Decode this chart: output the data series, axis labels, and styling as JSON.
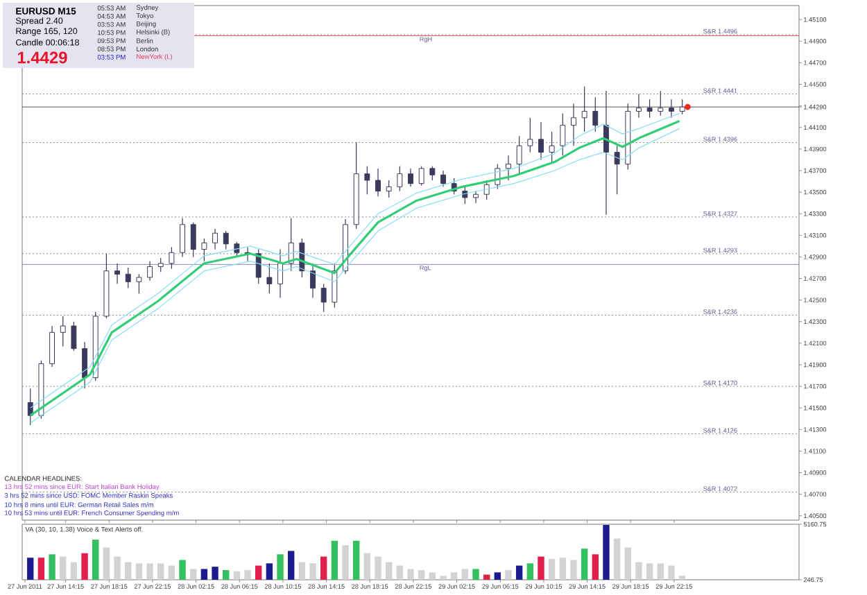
{
  "chart_data": [
    {
      "type": "candlestick",
      "title": "EURUSD M15",
      "color": "#3a3a5c",
      "x": [
        "2011-06-27T11:00",
        "2011-06-27T12:00",
        "2011-06-27T13:00",
        "2011-06-27T14:00",
        "2011-06-27T15:00",
        "2011-06-27T16:00",
        "2011-06-27T17:00",
        "2011-06-27T18:00",
        "2011-06-27T19:00",
        "2011-06-27T20:00",
        "2011-06-27T21:00",
        "2011-06-27T22:00",
        "2011-06-27T23:00",
        "2011-06-28T00:00",
        "2011-06-28T01:00",
        "2011-06-28T02:00",
        "2011-06-28T03:00",
        "2011-06-28T04:00",
        "2011-06-28T05:00",
        "2011-06-28T06:00",
        "2011-06-28T07:00",
        "2011-06-28T08:00",
        "2011-06-28T09:00",
        "2011-06-28T10:00",
        "2011-06-28T11:00",
        "2011-06-28T12:00",
        "2011-06-28T13:00",
        "2011-06-28T14:00",
        "2011-06-28T15:00",
        "2011-06-28T16:00",
        "2011-06-28T17:00",
        "2011-06-28T18:00",
        "2011-06-28T19:00",
        "2011-06-28T20:00",
        "2011-06-28T21:00",
        "2011-06-28T22:00",
        "2011-06-28T23:00",
        "2011-06-29T00:00",
        "2011-06-29T01:00",
        "2011-06-29T02:00",
        "2011-06-29T03:00",
        "2011-06-29T04:00",
        "2011-06-29T05:00",
        "2011-06-29T06:00",
        "2011-06-29T07:00",
        "2011-06-29T08:00",
        "2011-06-29T09:00",
        "2011-06-29T10:00",
        "2011-06-29T11:00",
        "2011-06-29T12:00",
        "2011-06-29T13:00",
        "2011-06-29T14:00",
        "2011-06-29T15:00",
        "2011-06-29T16:00",
        "2011-06-29T17:00",
        "2011-06-29T18:00",
        "2011-06-29T19:00",
        "2011-06-29T20:00",
        "2011-06-29T21:00",
        "2011-06-29T22:00",
        "2011-06-29T23:00"
      ],
      "ohlc": [
        [
          1.4155,
          1.4168,
          1.4134,
          1.4143
        ],
        [
          1.4143,
          1.4194,
          1.414,
          1.4191
        ],
        [
          1.4191,
          1.4226,
          1.4188,
          1.422
        ],
        [
          1.422,
          1.4235,
          1.4207,
          1.4226
        ],
        [
          1.4226,
          1.423,
          1.4203,
          1.4205
        ],
        [
          1.4205,
          1.4211,
          1.4168,
          1.4178
        ],
        [
          1.4178,
          1.4239,
          1.4175,
          1.4235
        ],
        [
          1.4235,
          1.4293,
          1.4233,
          1.4277
        ],
        [
          1.4277,
          1.4284,
          1.4265,
          1.4274
        ],
        [
          1.4274,
          1.428,
          1.4261,
          1.4267
        ],
        [
          1.4267,
          1.4274,
          1.4256,
          1.4271
        ],
        [
          1.4271,
          1.4286,
          1.4268,
          1.4281
        ],
        [
          1.4281,
          1.4289,
          1.4276,
          1.4284
        ],
        [
          1.4284,
          1.4299,
          1.4279,
          1.4294
        ],
        [
          1.4294,
          1.4326,
          1.429,
          1.432
        ],
        [
          1.432,
          1.4322,
          1.429,
          1.4297
        ],
        [
          1.4297,
          1.4307,
          1.4286,
          1.4303
        ],
        [
          1.4303,
          1.4316,
          1.4297,
          1.4312
        ],
        [
          1.4312,
          1.4314,
          1.4297,
          1.4302
        ],
        [
          1.4302,
          1.4304,
          1.429,
          1.4294
        ],
        [
          1.4294,
          1.4299,
          1.4286,
          1.4293
        ],
        [
          1.4293,
          1.4297,
          1.4265,
          1.4271
        ],
        [
          1.4271,
          1.4284,
          1.4256,
          1.4265
        ],
        [
          1.4265,
          1.4297,
          1.4252,
          1.4284
        ],
        [
          1.4284,
          1.4326,
          1.4277,
          1.4303
        ],
        [
          1.4303,
          1.4307,
          1.4271,
          1.4277
        ],
        [
          1.4277,
          1.4284,
          1.4252,
          1.4261
        ],
        [
          1.4261,
          1.4265,
          1.4239,
          1.4248
        ],
        [
          1.4248,
          1.4284,
          1.4243,
          1.4277
        ],
        [
          1.4277,
          1.4325,
          1.4274,
          1.432
        ],
        [
          1.432,
          1.4396,
          1.4316,
          1.4367
        ],
        [
          1.4367,
          1.4374,
          1.4348,
          1.4361
        ],
        [
          1.4361,
          1.4372,
          1.4346,
          1.4351
        ],
        [
          1.4351,
          1.4361,
          1.4345,
          1.4355
        ],
        [
          1.4355,
          1.4374,
          1.4351,
          1.4367
        ],
        [
          1.4367,
          1.4372,
          1.4355,
          1.4358
        ],
        [
          1.4358,
          1.4374,
          1.4356,
          1.4372
        ],
        [
          1.4372,
          1.4374,
          1.4361,
          1.4366
        ],
        [
          1.4366,
          1.437,
          1.4355,
          1.4358
        ],
        [
          1.4358,
          1.4363,
          1.4348,
          1.4351
        ],
        [
          1.4351,
          1.4356,
          1.4339,
          1.4345
        ],
        [
          1.4345,
          1.4351,
          1.434,
          1.4348
        ],
        [
          1.4348,
          1.4361,
          1.4343,
          1.4357
        ],
        [
          1.4357,
          1.4376,
          1.4353,
          1.4372
        ],
        [
          1.4372,
          1.4384,
          1.4361,
          1.4376
        ],
        [
          1.4376,
          1.4402,
          1.4367,
          1.4393
        ],
        [
          1.4393,
          1.4419,
          1.4387,
          1.4399
        ],
        [
          1.4399,
          1.4415,
          1.438,
          1.4387
        ],
        [
          1.4387,
          1.4406,
          1.4377,
          1.4393
        ],
        [
          1.4393,
          1.4423,
          1.4384,
          1.4412
        ],
        [
          1.4412,
          1.4432,
          1.4393,
          1.4419
        ],
        [
          1.4419,
          1.4448,
          1.4406,
          1.4425
        ],
        [
          1.4425,
          1.4438,
          1.4406,
          1.4412
        ],
        [
          1.4412,
          1.4444,
          1.4329,
          1.4387
        ],
        [
          1.4387,
          1.4393,
          1.4348,
          1.4376
        ],
        [
          1.4376,
          1.4432,
          1.4371,
          1.4425
        ],
        [
          1.4425,
          1.4441,
          1.4419,
          1.4428
        ],
        [
          1.4428,
          1.4436,
          1.4419,
          1.4425
        ],
        [
          1.4425,
          1.4444,
          1.4421,
          1.4428
        ],
        [
          1.4428,
          1.4436,
          1.4419,
          1.4425
        ],
        [
          1.4425,
          1.4436,
          1.4422,
          1.4429
        ]
      ],
      "series": [
        {
          "type": "line",
          "color": "#33cc77",
          "x": [
            "2011-06-27T11:00",
            "2011-06-27T16:30",
            "2011-06-27T18:30",
            "2011-06-27T22:45",
            "2011-06-28T03:00",
            "2011-06-28T07:15",
            "2011-06-28T10:15",
            "2011-06-28T11:30",
            "2011-06-28T15:00",
            "2011-06-28T16:30",
            "2011-06-28T19:00",
            "2011-06-28T22:30",
            "2011-06-29T02:45",
            "2011-06-29T07:30",
            "2011-06-29T11:15",
            "2011-06-29T13:30",
            "2011-06-29T15:45",
            "2011-06-29T17:30",
            "2011-06-29T19:00",
            "2011-06-29T22:45"
          ],
          "values": [
            1.4143,
            1.4181,
            1.422,
            1.4249,
            1.4284,
            1.4293,
            1.4284,
            1.4288,
            1.4275,
            1.4293,
            1.4322,
            1.4342,
            1.4355,
            1.4365,
            1.4378,
            1.4391,
            1.44,
            1.4392,
            1.44,
            1.4416
          ]
        },
        {
          "type": "line",
          "color": "#88ddf5",
          "x": [
            "2011-06-27T11:00",
            "2011-06-27T16:30",
            "2011-06-27T18:30",
            "2011-06-27T22:45",
            "2011-06-28T03:00",
            "2011-06-28T07:15",
            "2011-06-28T10:15",
            "2011-06-28T11:30",
            "2011-06-28T15:00",
            "2011-06-28T16:30",
            "2011-06-28T19:00",
            "2011-06-28T22:30",
            "2011-06-29T02:45",
            "2011-06-29T07:30",
            "2011-06-29T11:15",
            "2011-06-29T13:30",
            "2011-06-29T15:45",
            "2011-06-29T17:30",
            "2011-06-29T19:00",
            "2011-06-29T22:45"
          ],
          "values": [
            1.415,
            1.4188,
            1.4227,
            1.4256,
            1.4291,
            1.43,
            1.4291,
            1.4295,
            1.4283,
            1.4301,
            1.433,
            1.4349,
            1.4362,
            1.4372,
            1.4386,
            1.4402,
            1.4413,
            1.4404,
            1.4409,
            1.4423
          ]
        },
        {
          "type": "line",
          "color": "#88ddf5",
          "x": [
            "2011-06-27T11:00",
            "2011-06-27T16:30",
            "2011-06-27T18:30",
            "2011-06-27T22:45",
            "2011-06-28T03:00",
            "2011-06-28T07:15",
            "2011-06-28T10:15",
            "2011-06-28T11:30",
            "2011-06-28T15:00",
            "2011-06-28T16:30",
            "2011-06-28T19:00",
            "2011-06-28T22:30",
            "2011-06-29T02:45",
            "2011-06-29T07:30",
            "2011-06-29T11:15",
            "2011-06-29T13:30",
            "2011-06-29T15:45",
            "2011-06-29T17:30",
            "2011-06-29T19:00",
            "2011-06-29T22:45"
          ],
          "values": [
            1.4136,
            1.4174,
            1.4213,
            1.4242,
            1.4277,
            1.4286,
            1.4277,
            1.4281,
            1.4267,
            1.4285,
            1.4314,
            1.4335,
            1.4348,
            1.4358,
            1.437,
            1.438,
            1.4387,
            1.438,
            1.4391,
            1.4409
          ]
        },
        {
          "type": "scatter",
          "color": "#ee2a1a",
          "x": [
            "2011-06-29T23:30"
          ],
          "values": [
            1.4429
          ]
        }
      ],
      "xlim": [
        "2011-06-27T10:15",
        "2011-06-30T09:45"
      ],
      "xticks": [
        {
          "value": "2011-06-27T10:30",
          "label": null
        },
        {
          "value": "2011-06-27T14:15",
          "label": null
        },
        {
          "value": "2011-06-27T18:15",
          "label": null
        },
        {
          "value": "2011-06-27T22:15",
          "label": null
        },
        {
          "value": "2011-06-28T02:15",
          "label": null
        },
        {
          "value": "2011-06-28T06:15",
          "label": null
        },
        {
          "value": "2011-06-28T10:15",
          "label": null
        },
        {
          "value": "2011-06-28T14:15",
          "label": null
        },
        {
          "value": "2011-06-28T18:15",
          "label": null
        },
        {
          "value": "2011-06-28T22:15",
          "label": null
        },
        {
          "value": "2011-06-29T02:15",
          "label": null
        },
        {
          "value": "2011-06-29T06:15",
          "label": null
        },
        {
          "value": "2011-06-29T10:15",
          "label": null
        },
        {
          "value": "2011-06-29T14:15",
          "label": null
        },
        {
          "value": "2011-06-29T18:15",
          "label": null
        },
        {
          "value": "2011-06-29T22:15",
          "label": null
        }
      ],
      "ylim": [
        1.4046,
        1.4523
      ],
      "yticks": [
        {
          "value": 1.405,
          "label": "1.40500"
        },
        {
          "value": 1.407,
          "label": "1.40700"
        },
        {
          "value": 1.409,
          "label": "1.40900"
        },
        {
          "value": 1.411,
          "label": "1.41100"
        },
        {
          "value": 1.413,
          "label": "1.41300"
        },
        {
          "value": 1.415,
          "label": "1.41500"
        },
        {
          "value": 1.417,
          "label": "1.41700"
        },
        {
          "value": 1.419,
          "label": "1.41900"
        },
        {
          "value": 1.421,
          "label": "1.42100"
        },
        {
          "value": 1.423,
          "label": "1.42300"
        },
        {
          "value": 1.425,
          "label": "1.42500"
        },
        {
          "value": 1.427,
          "label": "1.42700"
        },
        {
          "value": 1.429,
          "label": "1.42900"
        },
        {
          "value": 1.431,
          "label": "1.43100"
        },
        {
          "value": 1.433,
          "label": "1.43300"
        },
        {
          "value": 1.435,
          "label": "1.43500"
        },
        {
          "value": 1.437,
          "label": "1.43700"
        },
        {
          "value": 1.439,
          "label": "1.43900"
        },
        {
          "value": 1.441,
          "label": "1.44100"
        },
        {
          "value": 1.4429,
          "label": "1.44290"
        },
        {
          "value": 1.443,
          "label": null
        },
        {
          "value": 1.445,
          "label": "1.44500"
        },
        {
          "value": 1.447,
          "label": "1.44700"
        },
        {
          "value": 1.449,
          "label": "1.44900"
        },
        {
          "value": 1.451,
          "label": "1.45100"
        }
      ],
      "tick_labels": "y",
      "ref_lines": [
        {
          "axis": "y",
          "value": 1.4496,
          "label": "S&R    1.4496",
          "color": "#8c8c8c",
          "line_style": "dotted"
        },
        {
          "axis": "y",
          "value": 1.4441,
          "label": "S&R    1.4441",
          "color": "#8c8c8c",
          "line_style": "dotted"
        },
        {
          "axis": "y",
          "value": 1.4396,
          "label": "S&R    1.4396",
          "color": "#8c8c8c",
          "line_style": "dotted"
        },
        {
          "axis": "y",
          "value": 1.4327,
          "label": "S&R    1.4327",
          "color": "#8c8c8c",
          "line_style": "dotted"
        },
        {
          "axis": "y",
          "value": 1.4293,
          "label": "S&R    1.4293",
          "color": "#8c8c8c",
          "line_style": "dotted"
        },
        {
          "axis": "y",
          "value": 1.4236,
          "label": "S&R    1.4236",
          "color": "#8c8c8c",
          "line_style": "dotted"
        },
        {
          "axis": "y",
          "value": 1.417,
          "label": "S&R    1.4170",
          "color": "#8c8c8c",
          "line_style": "dotted"
        },
        {
          "axis": "y",
          "value": 1.4126,
          "label": "S&R    1.4126",
          "color": "#8c8c8c",
          "line_style": "dotted"
        },
        {
          "axis": "y",
          "value": 1.4072,
          "label": "S&R    1.4072",
          "color": "#8c8c8c",
          "line_style": "dotted"
        },
        {
          "axis": "y",
          "value": 1.4495,
          "label": "RgH",
          "color": "#ee5555",
          "line_style": "solid"
        },
        {
          "axis": "y",
          "value": 1.4283,
          "label": "RgL",
          "color": "#8888cc",
          "line_style": "solid"
        },
        {
          "axis": "y",
          "value": 1.4429,
          "color": "#555555",
          "line_style": "solid"
        }
      ],
      "annotations": [
        "Spread 2.40",
        "Range 165, 120",
        "Candle 00:06:18",
        "1.4429",
        "05:53 AM",
        "04:53 AM",
        "03:53 AM",
        "10:53 PM",
        "09:53 PM",
        "08:53 PM",
        "03:53 PM",
        "Sydney",
        "Tokyo",
        "Beijing",
        "Helsinki (B)",
        "Berlin",
        "London",
        "NewYork (L)",
        "CALENDAR HEADLINES:",
        "13 hrs 52 mins since EUR: Start Italian Bank Holiday",
        "3 hrs 52 mins since USD: FOMC Member Raskin Speaks",
        "10 hrs 8 mins until EUR: German Retail Sales m/m",
        "10 hrs 53 mins until EUR: French Consumer Spending m/m"
      ]
    },
    {
      "type": "bar",
      "title": "VA (30, 10, 1.38)  Voice & Text Alerts off.",
      "x": [
        "2011-06-27T11:00",
        "2011-06-27T12:00",
        "2011-06-27T13:00",
        "2011-06-27T14:00",
        "2011-06-27T15:00",
        "2011-06-27T16:00",
        "2011-06-27T17:00",
        "2011-06-27T18:00",
        "2011-06-27T19:00",
        "2011-06-27T20:00",
        "2011-06-27T21:00",
        "2011-06-27T22:00",
        "2011-06-27T23:00",
        "2011-06-28T00:00",
        "2011-06-28T01:00",
        "2011-06-28T02:00",
        "2011-06-28T03:00",
        "2011-06-28T04:00",
        "2011-06-28T05:00",
        "2011-06-28T06:00",
        "2011-06-28T07:00",
        "2011-06-28T08:00",
        "2011-06-28T09:00",
        "2011-06-28T10:00",
        "2011-06-28T11:00",
        "2011-06-28T12:00",
        "2011-06-28T13:00",
        "2011-06-28T14:00",
        "2011-06-28T15:00",
        "2011-06-28T16:00",
        "2011-06-28T17:00",
        "2011-06-28T18:00",
        "2011-06-28T19:00",
        "2011-06-28T20:00",
        "2011-06-28T21:00",
        "2011-06-28T22:00",
        "2011-06-28T23:00",
        "2011-06-29T00:00",
        "2011-06-29T01:00",
        "2011-06-29T02:00",
        "2011-06-29T03:00",
        "2011-06-29T04:00",
        "2011-06-29T05:00",
        "2011-06-29T06:00",
        "2011-06-29T07:00",
        "2011-06-29T08:00",
        "2011-06-29T09:00",
        "2011-06-29T10:00",
        "2011-06-29T11:00",
        "2011-06-29T12:00",
        "2011-06-29T13:00",
        "2011-06-29T14:00",
        "2011-06-29T15:00",
        "2011-06-29T16:00",
        "2011-06-29T17:00",
        "2011-06-29T18:00",
        "2011-06-29T19:00",
        "2011-06-29T20:00",
        "2011-06-29T21:00",
        "2011-06-29T22:00",
        "2011-06-29T23:00"
      ],
      "values": [
        2200,
        2200,
        2500,
        2300,
        1800,
        2600,
        3800,
        3100,
        2300,
        1800,
        1700,
        1700,
        1700,
        1500,
        2000,
        1200,
        1200,
        1400,
        1100,
        1000,
        1100,
        1500,
        1700,
        2500,
        2800,
        1800,
        1700,
        2300,
        3700,
        3300,
        3700,
        2600,
        2300,
        1800,
        1500,
        1200,
        1100,
        900,
        600,
        900,
        1200,
        1200,
        700,
        900,
        1100,
        1500,
        1700,
        2300,
        2100,
        2200,
        2000,
        3000,
        2500,
        5100,
        3900,
        3100,
        1800,
        1700,
        1700,
        1500,
        600
      ],
      "colors": [
        "#1c1c90",
        "#e0204a",
        "#33c060",
        "#d3d3d3",
        "#d3d3d3",
        "#e0204a",
        "#33c060",
        "#d3d3d3",
        "#d3d3d3",
        "#d3d3d3",
        "#d3d3d3",
        "#d3d3d3",
        "#d3d3d3",
        "#d3d3d3",
        "#33c060",
        "#d3d3d3",
        "#1c1c90",
        "#1c1c90",
        "#33c060",
        "#d3d3d3",
        "#d3d3d3",
        "#e0204a",
        "#1c1c90",
        "#33c060",
        "#1c1c90",
        "#d3d3d3",
        "#d3d3d3",
        "#e0204a",
        "#33c060",
        "#d3d3d3",
        "#33c060",
        "#d3d3d3",
        "#d3d3d3",
        "#d3d3d3",
        "#d3d3d3",
        "#d3d3d3",
        "#d3d3d3",
        "#d3d3d3",
        "#d3d3d3",
        "#d3d3d3",
        "#d3d3d3",
        "#33c060",
        "#e0204a",
        "#1c1c90",
        "#d3d3d3",
        "#1c1c90",
        "#33c060",
        "#e0204a",
        "#d3d3d3",
        "#d3d3d3",
        "#d3d3d3",
        "#33c060",
        "#e0204a",
        "#1c1c90",
        "#d3d3d3",
        "#d3d3d3",
        "#d3d3d3",
        "#d3d3d3",
        "#d3d3d3",
        "#d3d3d3",
        "#d3d3d3"
      ],
      "xlim": [
        "2011-06-27T10:15",
        "2011-06-30T09:45"
      ],
      "xticks": [
        {
          "value": "2011-06-27T10:30",
          "label": "27 Jun 2011"
        },
        {
          "value": "2011-06-27T14:15",
          "label": "27 Jun 14:15"
        },
        {
          "value": "2011-06-27T18:15",
          "label": "27 Jun 18:15"
        },
        {
          "value": "2011-06-27T22:15",
          "label": "27 Jun 22:15"
        },
        {
          "value": "2011-06-28T02:15",
          "label": "28 Jun 02:15"
        },
        {
          "value": "2011-06-28T06:15",
          "label": "28 Jun 06:15"
        },
        {
          "value": "2011-06-28T10:15",
          "label": "28 Jun 10:15"
        },
        {
          "value": "2011-06-28T14:15",
          "label": "28 Jun 14:15"
        },
        {
          "value": "2011-06-28T18:15",
          "label": "28 Jun 18:15"
        },
        {
          "value": "2011-06-28T22:15",
          "label": "28 Jun 22:15"
        },
        {
          "value": "2011-06-29T02:15",
          "label": "29 Jun 02:15"
        },
        {
          "value": "2011-06-29T06:15",
          "label": "29 Jun 06:15"
        },
        {
          "value": "2011-06-29T10:15",
          "label": "29 Jun 10:15"
        },
        {
          "value": "2011-06-29T14:15",
          "label": "29 Jun 14:15"
        },
        {
          "value": "2011-06-29T18:15",
          "label": "29 Jun 18:15"
        },
        {
          "value": "2011-06-29T22:15",
          "label": "29 Jun 22:15"
        }
      ],
      "ylim": [
        246.75,
        5160.75
      ],
      "yticks": [
        246.75,
        5160.75
      ]
    }
  ]
}
